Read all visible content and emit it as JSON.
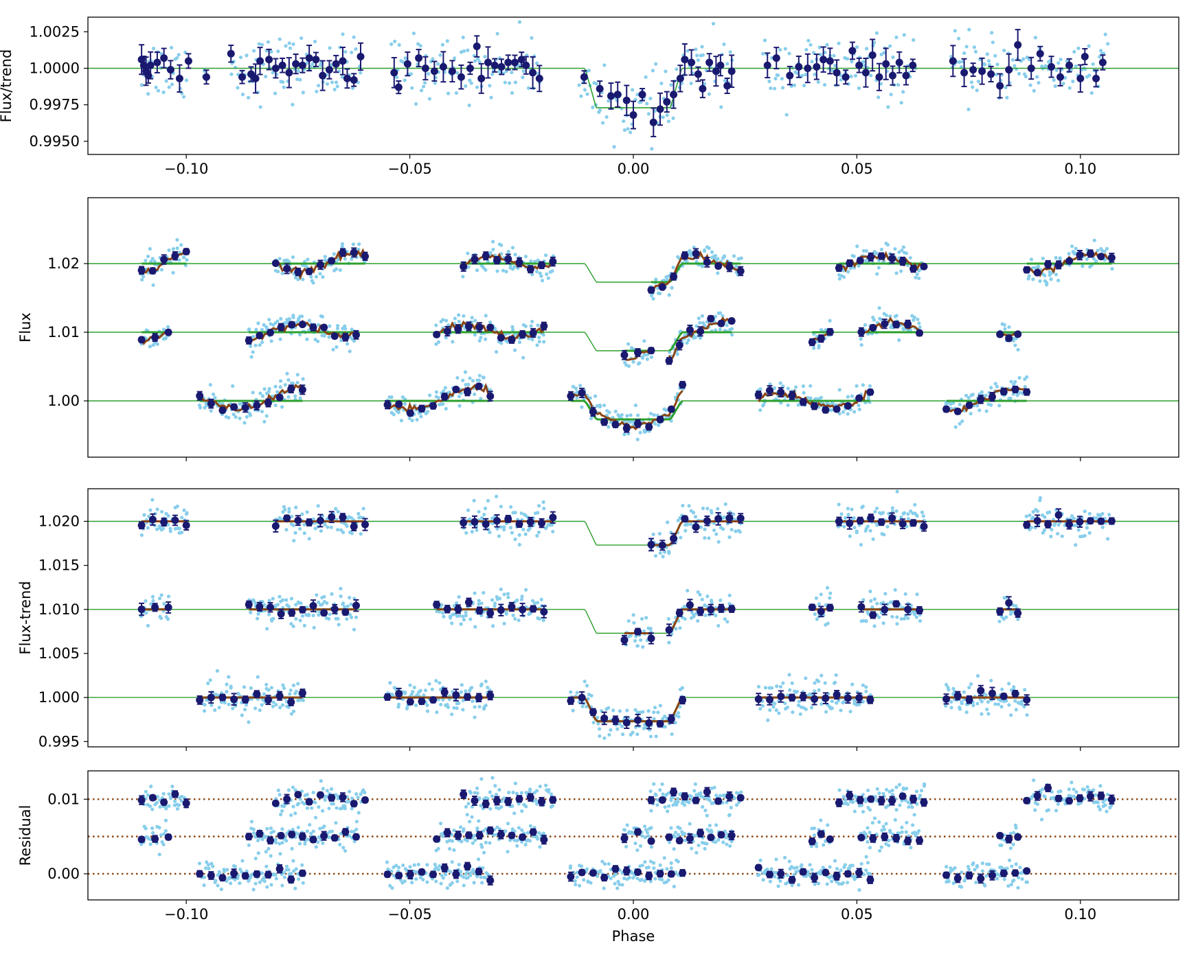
{
  "colors": {
    "raw_points": "#87ceeb",
    "binned_points": "#191970",
    "transit_model": "#2ca02c",
    "trend_model": "#8b4513",
    "residual_reference": "#8b4513"
  },
  "chart_data": [
    {
      "type": "scatter",
      "id": "panel-flux-over-trend",
      "xlabel": "",
      "ylabel": "Flux/trend",
      "xlim": [
        -0.122,
        0.122
      ],
      "ylim": [
        0.9941,
        1.0035
      ],
      "xticks": [
        -0.1,
        -0.05,
        0.0,
        0.05,
        0.1
      ],
      "xticklabels": [
        "−0.10",
        "−0.05",
        "0.00",
        "0.05",
        "0.10"
      ],
      "show_xticklabels": true,
      "yticks": [
        0.995,
        0.9975,
        1.0,
        1.0025
      ],
      "yticklabels": [
        "0.9950",
        "0.9975",
        "1.0000",
        "1.0025"
      ],
      "offsets": [
        0
      ],
      "windows": [
        [
          -0.11,
          -0.1
        ],
        [
          -0.096,
          -0.096
        ],
        [
          -0.09,
          -0.061
        ],
        [
          -0.054,
          -0.021
        ],
        [
          -0.012,
          0.022
        ],
        [
          0.029,
          0.063
        ],
        [
          0.071,
          0.106
        ]
      ],
      "transit": {
        "depth": 0.0027,
        "half_width": 0.0108,
        "ingress": 0.0025
      },
      "binned_flux": [
        [
          -0.11,
          1.0006
        ],
        [
          -0.1095,
          1.0002
        ],
        [
          -0.109,
          0.9998
        ],
        [
          -0.1085,
          0.9995
        ],
        [
          -0.108,
          1.0002
        ],
        [
          -0.1065,
          1.0004
        ],
        [
          -0.105,
          1.0007
        ],
        [
          -0.1035,
          0.9999
        ],
        [
          -0.1015,
          0.9993
        ],
        [
          -0.0995,
          1.0005
        ],
        [
          -0.0955,
          0.9994
        ],
        [
          -0.09,
          1.001
        ],
        [
          -0.0875,
          0.9994
        ],
        [
          -0.0855,
          0.9996
        ],
        [
          -0.0845,
          0.9993
        ],
        [
          -0.0835,
          1.0005
        ],
        [
          -0.0815,
          1.0006
        ],
        [
          -0.08,
          1.0
        ],
        [
          -0.0785,
          1.0002
        ],
        [
          -0.077,
          0.9997
        ],
        [
          -0.0755,
          1.0003
        ],
        [
          -0.074,
          1.0002
        ],
        [
          -0.0725,
          1.0007
        ],
        [
          -0.071,
          1.0006
        ],
        [
          -0.0695,
          0.9995
        ],
        [
          -0.068,
          0.9999
        ],
        [
          -0.0665,
          1.0003
        ],
        [
          -0.065,
          1.0005
        ],
        [
          -0.064,
          0.9993
        ],
        [
          -0.0625,
          0.9992
        ],
        [
          -0.061,
          1.0008
        ],
        [
          -0.0535,
          0.9997
        ],
        [
          -0.0525,
          0.9987
        ],
        [
          -0.0505,
          1.0003
        ],
        [
          -0.048,
          1.0007
        ],
        [
          -0.0465,
          1.0
        ],
        [
          -0.0445,
          0.9998
        ],
        [
          -0.0425,
          1.0001
        ],
        [
          -0.0405,
          0.9998
        ],
        [
          -0.0385,
          0.9994
        ],
        [
          -0.0365,
          1.0
        ],
        [
          -0.035,
          1.0015
        ],
        [
          -0.034,
          0.9993
        ],
        [
          -0.0325,
          1.0004
        ],
        [
          -0.031,
          1.0002
        ],
        [
          -0.0295,
          1.0001
        ],
        [
          -0.028,
          1.0004
        ],
        [
          -0.0265,
          1.0004
        ],
        [
          -0.025,
          1.0006
        ],
        [
          -0.024,
          1.0002
        ],
        [
          -0.0225,
          0.9997
        ],
        [
          -0.021,
          0.9993
        ],
        [
          -0.011,
          0.9994
        ],
        [
          -0.0075,
          0.9986
        ],
        [
          -0.005,
          0.9981
        ],
        [
          -0.0035,
          0.9982
        ],
        [
          -0.0015,
          0.9978
        ],
        [
          0.0,
          0.9968
        ],
        [
          0.002,
          0.9982
        ],
        [
          0.0045,
          0.9963
        ],
        [
          0.006,
          0.9972
        ],
        [
          0.0075,
          0.9977
        ],
        [
          0.009,
          0.9982
        ],
        [
          0.0105,
          0.9993
        ],
        [
          0.0115,
          1.0006
        ],
        [
          0.013,
          1.0004
        ],
        [
          0.0145,
          0.9996
        ],
        [
          0.0155,
          0.9986
        ],
        [
          0.017,
          1.0004
        ],
        [
          0.0185,
          0.9998
        ],
        [
          0.0195,
          1.0002
        ],
        [
          0.021,
          0.9988
        ],
        [
          0.022,
          0.9998
        ],
        [
          0.03,
          1.0002
        ],
        [
          0.032,
          1.0007
        ],
        [
          0.035,
          0.9995
        ],
        [
          0.037,
          1.0001
        ],
        [
          0.039,
          1.0
        ],
        [
          0.041,
          1.0001
        ],
        [
          0.0425,
          1.0006
        ],
        [
          0.044,
          1.0005
        ],
        [
          0.0455,
          0.9997
        ],
        [
          0.0475,
          0.9994
        ],
        [
          0.049,
          1.0012
        ],
        [
          0.0505,
          1.0002
        ],
        [
          0.052,
          0.9997
        ],
        [
          0.0535,
          1.0009
        ],
        [
          0.055,
          0.9994
        ],
        [
          0.0565,
          1.0003
        ],
        [
          0.058,
          0.9995
        ],
        [
          0.0595,
          1.0004
        ],
        [
          0.061,
          0.9995
        ],
        [
          0.0625,
          1.0002
        ],
        [
          0.0715,
          1.0005
        ],
        [
          0.074,
          0.9997
        ],
        [
          0.076,
          0.9999
        ],
        [
          0.078,
          0.9998
        ],
        [
          0.08,
          0.9996
        ],
        [
          0.082,
          0.9988
        ],
        [
          0.084,
          0.9999
        ],
        [
          0.086,
          1.0016
        ],
        [
          0.089,
          1.0
        ],
        [
          0.091,
          1.001
        ],
        [
          0.0935,
          1.0001
        ],
        [
          0.0955,
          0.9994
        ],
        [
          0.0975,
          1.0002
        ],
        [
          0.1,
          0.9993
        ],
        [
          0.101,
          1.0008
        ],
        [
          0.1035,
          0.9993
        ],
        [
          0.105,
          1.0004
        ]
      ]
    },
    {
      "type": "scatter",
      "id": "panel-flux",
      "xlabel": "",
      "ylabel": "Flux",
      "xlim": [
        -0.122,
        0.122
      ],
      "ylim": [
        0.9918,
        1.0296
      ],
      "xticks": [
        -0.1,
        -0.05,
        0.0,
        0.05,
        0.1
      ],
      "xticklabels": [],
      "show_xticklabels": false,
      "yticks": [
        1.0,
        1.01,
        1.02
      ],
      "yticklabels": [
        "1.00",
        "1.01",
        "1.02"
      ],
      "offsets": [
        1.02,
        1.01,
        1.0
      ],
      "transit": {
        "depth": 0.0027,
        "half_width": 0.0108,
        "ingress": 0.0025
      },
      "epochs": [
        {
          "offset": 1.02,
          "windows": [
            [
              -0.11,
              -0.1
            ],
            [
              -0.08,
              -0.06
            ],
            [
              -0.038,
              -0.018
            ],
            [
              0.004,
              0.024
            ],
            [
              0.046,
              0.065
            ],
            [
              0.088,
              0.107
            ]
          ],
          "trend_amp": 0.0018,
          "trend_period": 0.022
        },
        {
          "offset": 1.01,
          "windows": [
            [
              -0.11,
              -0.104
            ],
            [
              -0.086,
              -0.062
            ],
            [
              -0.044,
              -0.02
            ],
            [
              -0.002,
              0.004
            ],
            [
              0.008,
              0.022
            ],
            [
              0.04,
              0.044
            ],
            [
              0.051,
              0.064
            ],
            [
              0.082,
              0.086
            ]
          ],
          "trend_amp": 0.002,
          "trend_period": 0.024
        },
        {
          "offset": 1.0,
          "windows": [
            [
              -0.097,
              -0.074
            ],
            [
              -0.055,
              -0.032
            ],
            [
              -0.014,
              0.011
            ],
            [
              0.028,
              0.053
            ],
            [
              0.07,
              0.088
            ]
          ],
          "trend_amp": 0.0022,
          "trend_period": 0.026
        }
      ]
    },
    {
      "type": "scatter",
      "id": "panel-flux-minus-trend",
      "xlabel": "",
      "ylabel": "Flux-trend",
      "xlim": [
        -0.122,
        0.122
      ],
      "ylim": [
        0.9944,
        1.0237
      ],
      "xticks": [
        -0.1,
        -0.05,
        0.0,
        0.05,
        0.1
      ],
      "xticklabels": [],
      "show_xticklabels": false,
      "yticks": [
        0.995,
        1.0,
        1.005,
        1.01,
        1.015,
        1.02
      ],
      "yticklabels": [
        "0.995",
        "1.000",
        "1.005",
        "1.010",
        "1.015",
        "1.020"
      ],
      "offsets": [
        1.02,
        1.01,
        1.0
      ],
      "transit": {
        "depth": 0.0027,
        "half_width": 0.0108,
        "ingress": 0.0025
      }
    },
    {
      "type": "scatter",
      "id": "panel-residual",
      "xlabel": "Phase",
      "ylabel": "Residual",
      "xlim": [
        -0.122,
        0.122
      ],
      "ylim": [
        -0.0035,
        0.0138
      ],
      "xticks": [
        -0.1,
        -0.05,
        0.0,
        0.05,
        0.1
      ],
      "xticklabels": [
        "−0.10",
        "−0.05",
        "0.00",
        "0.05",
        "0.10"
      ],
      "show_xticklabels": true,
      "yticks": [
        0.0,
        0.01
      ],
      "yticklabels": [
        "0.00",
        "0.01"
      ],
      "offsets": [
        0.01,
        0.005,
        0.0
      ]
    }
  ]
}
